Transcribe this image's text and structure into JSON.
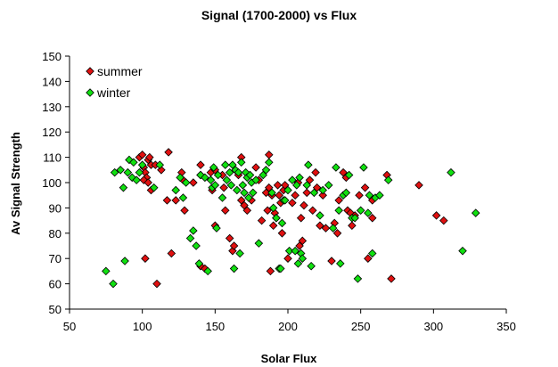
{
  "chart_data": {
    "type": "scatter",
    "title": "Signal (1700-2000) vs Flux",
    "xlabel": "Solar Flux",
    "ylabel": "Av Signal Strength",
    "xlim": [
      50,
      350
    ],
    "ylim": [
      50,
      150
    ],
    "x_ticks": [
      50,
      100,
      150,
      200,
      250,
      300,
      350
    ],
    "y_ticks": [
      50,
      60,
      70,
      80,
      90,
      100,
      110,
      120,
      130,
      140,
      150
    ],
    "grid": false,
    "legend_position": "top-left",
    "colors": {
      "summer": "#e01010",
      "winter": "#10e010",
      "outline": "#000000"
    },
    "series": [
      {
        "name": "summer",
        "points": [
          [
            98,
            110
          ],
          [
            100,
            111
          ],
          [
            101,
            106
          ],
          [
            102,
            104
          ],
          [
            104,
            109
          ],
          [
            105,
            110
          ],
          [
            106,
            107
          ],
          [
            103,
            102
          ],
          [
            101,
            101
          ],
          [
            104,
            100
          ],
          [
            106,
            97
          ],
          [
            109,
            107
          ],
          [
            113,
            105
          ],
          [
            118,
            112
          ],
          [
            117,
            93
          ],
          [
            123,
            93
          ],
          [
            127,
            104
          ],
          [
            128,
            101
          ],
          [
            129,
            89
          ],
          [
            135,
            100
          ],
          [
            140,
            103
          ],
          [
            140,
            107
          ],
          [
            140,
            67
          ],
          [
            143,
            66
          ],
          [
            147,
            104
          ],
          [
            148,
            97
          ],
          [
            150,
            105
          ],
          [
            150,
            83
          ],
          [
            155,
            103
          ],
          [
            156,
            98
          ],
          [
            157,
            89
          ],
          [
            160,
            78
          ],
          [
            162,
            73
          ],
          [
            163,
            75
          ],
          [
            166,
            103
          ],
          [
            168,
            110
          ],
          [
            168,
            93
          ],
          [
            170,
            91
          ],
          [
            172,
            89
          ],
          [
            175,
            93
          ],
          [
            178,
            106
          ],
          [
            180,
            101
          ],
          [
            182,
            85
          ],
          [
            185,
            96
          ],
          [
            186,
            89
          ],
          [
            187,
            111
          ],
          [
            187,
            98
          ],
          [
            188,
            65
          ],
          [
            189,
            95
          ],
          [
            190,
            83
          ],
          [
            191,
            88
          ],
          [
            192,
            86
          ],
          [
            193,
            99
          ],
          [
            194,
            95
          ],
          [
            195,
            92
          ],
          [
            196,
            80
          ],
          [
            197,
            97
          ],
          [
            198,
            99
          ],
          [
            200,
            70
          ],
          [
            203,
            92
          ],
          [
            205,
            95
          ],
          [
            207,
            100
          ],
          [
            208,
            75
          ],
          [
            209,
            86
          ],
          [
            210,
            77
          ],
          [
            211,
            91
          ],
          [
            213,
            96
          ],
          [
            215,
            101
          ],
          [
            217,
            89
          ],
          [
            219,
            104
          ],
          [
            220,
            98
          ],
          [
            222,
            83
          ],
          [
            224,
            95
          ],
          [
            226,
            82
          ],
          [
            230,
            69
          ],
          [
            232,
            84
          ],
          [
            234,
            80
          ],
          [
            235,
            93
          ],
          [
            238,
            104
          ],
          [
            240,
            102
          ],
          [
            241,
            89
          ],
          [
            243,
            88
          ],
          [
            244,
            83
          ],
          [
            246,
            87
          ],
          [
            249,
            95
          ],
          [
            253,
            98
          ],
          [
            255,
            70
          ],
          [
            258,
            93
          ],
          [
            258,
            86
          ],
          [
            268,
            103
          ],
          [
            271,
            62
          ],
          [
            290,
            99
          ],
          [
            302,
            87
          ],
          [
            307,
            85
          ],
          [
            102,
            70
          ],
          [
            110,
            60
          ],
          [
            120,
            72
          ]
        ]
      },
      {
        "name": "winter",
        "points": [
          [
            75,
            65
          ],
          [
            80,
            60
          ],
          [
            81,
            104
          ],
          [
            85,
            105
          ],
          [
            87,
            98
          ],
          [
            88,
            69
          ],
          [
            90,
            104
          ],
          [
            91,
            109
          ],
          [
            93,
            102
          ],
          [
            94,
            108
          ],
          [
            96,
            101
          ],
          [
            98,
            104
          ],
          [
            100,
            107
          ],
          [
            108,
            98
          ],
          [
            112,
            107
          ],
          [
            123,
            97
          ],
          [
            126,
            102
          ],
          [
            128,
            94
          ],
          [
            130,
            100
          ],
          [
            133,
            78
          ],
          [
            135,
            81
          ],
          [
            137,
            75
          ],
          [
            139,
            68
          ],
          [
            140,
            103
          ],
          [
            143,
            102
          ],
          [
            145,
            65
          ],
          [
            147,
            101
          ],
          [
            148,
            98
          ],
          [
            149,
            106
          ],
          [
            150,
            99
          ],
          [
            151,
            82
          ],
          [
            152,
            103
          ],
          [
            155,
            94
          ],
          [
            157,
            107
          ],
          [
            158,
            101
          ],
          [
            160,
            104
          ],
          [
            161,
            99
          ],
          [
            162,
            107
          ],
          [
            163,
            66
          ],
          [
            164,
            105
          ],
          [
            165,
            97
          ],
          [
            166,
            104
          ],
          [
            167,
            72
          ],
          [
            168,
            108
          ],
          [
            169,
            99
          ],
          [
            170,
            96
          ],
          [
            171,
            104
          ],
          [
            172,
            102
          ],
          [
            173,
            94
          ],
          [
            174,
            103
          ],
          [
            175,
            100
          ],
          [
            176,
            96
          ],
          [
            178,
            101
          ],
          [
            180,
            76
          ],
          [
            183,
            103
          ],
          [
            185,
            105
          ],
          [
            187,
            108
          ],
          [
            189,
            96
          ],
          [
            190,
            90
          ],
          [
            192,
            86
          ],
          [
            194,
            66
          ],
          [
            195,
            66
          ],
          [
            196,
            84
          ],
          [
            197,
            93
          ],
          [
            198,
            93
          ],
          [
            200,
            97
          ],
          [
            201,
            73
          ],
          [
            203,
            101
          ],
          [
            205,
            73
          ],
          [
            206,
            99
          ],
          [
            207,
            68
          ],
          [
            208,
            102
          ],
          [
            209,
            72
          ],
          [
            210,
            70
          ],
          [
            213,
            99
          ],
          [
            214,
            107
          ],
          [
            216,
            67
          ],
          [
            218,
            96
          ],
          [
            222,
            87
          ],
          [
            224,
            97
          ],
          [
            228,
            99
          ],
          [
            231,
            82
          ],
          [
            233,
            106
          ],
          [
            235,
            89
          ],
          [
            236,
            68
          ],
          [
            238,
            95
          ],
          [
            240,
            96
          ],
          [
            242,
            103
          ],
          [
            244,
            86
          ],
          [
            246,
            86
          ],
          [
            248,
            62
          ],
          [
            250,
            89
          ],
          [
            252,
            106
          ],
          [
            255,
            88
          ],
          [
            256,
            95
          ],
          [
            258,
            72
          ],
          [
            260,
            94
          ],
          [
            263,
            95
          ],
          [
            269,
            101
          ],
          [
            312,
            104
          ],
          [
            320,
            73
          ],
          [
            329,
            88
          ]
        ]
      }
    ]
  }
}
